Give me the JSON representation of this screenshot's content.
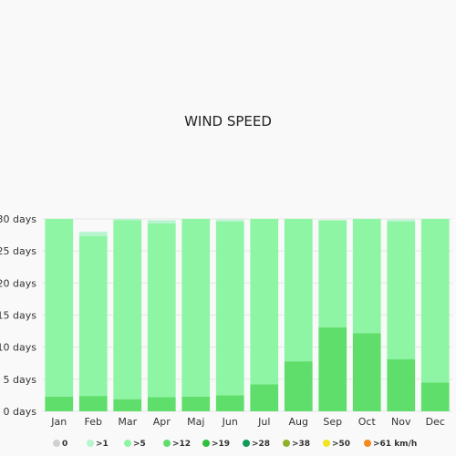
{
  "chart_data": {
    "type": "bar",
    "title": "WIND SPEED",
    "stacked": true,
    "categories": [
      "Jan",
      "Feb",
      "Mar",
      "Apr",
      "Maj",
      "Jun",
      "Jul",
      "Aug",
      "Sep",
      "Oct",
      "Nov",
      "Dec"
    ],
    "series": [
      {
        "name": "0",
        "color": "#d0d0d0",
        "values": [
          0,
          0,
          0,
          0,
          0,
          0,
          0,
          0,
          0,
          0,
          0,
          0
        ]
      },
      {
        "name": ">1",
        "color": "#b7f5cf",
        "values": [
          0,
          0.7,
          0.2,
          0.5,
          0,
          0.3,
          0,
          0,
          0,
          0,
          0.3,
          0
        ]
      },
      {
        "name": ">5",
        "color": "#8ef5a4",
        "values": [
          27.7,
          24.9,
          27.9,
          27.1,
          27.7,
          27.1,
          25.8,
          22.2,
          16.7,
          17.8,
          21.5,
          25.5
        ]
      },
      {
        "name": ">12",
        "color": "#5fde6b",
        "values": [
          2.3,
          2.4,
          1.9,
          2.2,
          2.3,
          2.5,
          4.2,
          7.8,
          13.1,
          12.2,
          8.1,
          4.5
        ]
      },
      {
        "name": ">19",
        "color": "#2fbf3c",
        "values": [
          0,
          0,
          0,
          0,
          0,
          0,
          0,
          0,
          0,
          0,
          0,
          0
        ]
      },
      {
        "name": ">28",
        "color": "#109b59",
        "values": [
          0,
          0,
          0,
          0,
          0,
          0,
          0,
          0,
          0,
          0,
          0,
          0
        ]
      },
      {
        "name": ">38",
        "color": "#8fb02a",
        "values": [
          0,
          0,
          0,
          0,
          0,
          0,
          0,
          0,
          0,
          0,
          0,
          0
        ]
      },
      {
        "name": ">50",
        "color": "#f2e41d",
        "values": [
          0,
          0,
          0,
          0,
          0,
          0,
          0,
          0,
          0,
          0,
          0,
          0
        ]
      },
      {
        "name": ">61 km/h",
        "color": "#f48b1e",
        "values": [
          0,
          0,
          0,
          0,
          0,
          0,
          0,
          0,
          0,
          0,
          0,
          0
        ]
      }
    ],
    "stack_order_bottom_to_top": [
      ">12",
      ">5",
      ">1"
    ],
    "yticks": [
      "0 days",
      "5 days",
      "10 days",
      "15 days",
      "20 days",
      "25 days",
      "30 days"
    ],
    "ylim": [
      0,
      30
    ],
    "grid": true,
    "legend_position": "bottom"
  }
}
